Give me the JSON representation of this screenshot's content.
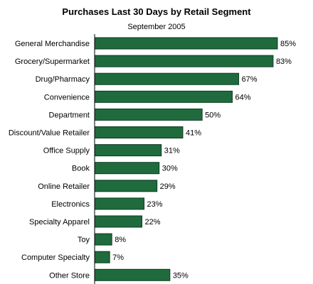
{
  "chart_data": {
    "type": "bar",
    "orientation": "horizontal",
    "title": "Purchases Last 30 Days by Retail Segment",
    "subtitle": "September 2005",
    "categories": [
      "General Merchandise",
      "Grocery/Supermarket",
      "Drug/Pharmacy",
      "Convenience",
      "Department",
      "Discount/Value Retailer",
      "Office Supply",
      "Book",
      "Online Retailer",
      "Electronics",
      "Specialty Apparel",
      "Toy",
      "Computer Specialty",
      "Other Store"
    ],
    "values": [
      85,
      83,
      67,
      64,
      50,
      41,
      31,
      30,
      29,
      23,
      22,
      8,
      7,
      35
    ],
    "value_labels": [
      "85%",
      "83%",
      "67%",
      "64%",
      "50%",
      "41%",
      "31%",
      "30%",
      "29%",
      "23%",
      "22%",
      "8%",
      "7%",
      "35%"
    ],
    "xlim": [
      0,
      100
    ],
    "grid": false,
    "colors": {
      "bar": "#1f6b3d",
      "bar_border": "#0d3a1f",
      "axis": "#000000"
    }
  }
}
